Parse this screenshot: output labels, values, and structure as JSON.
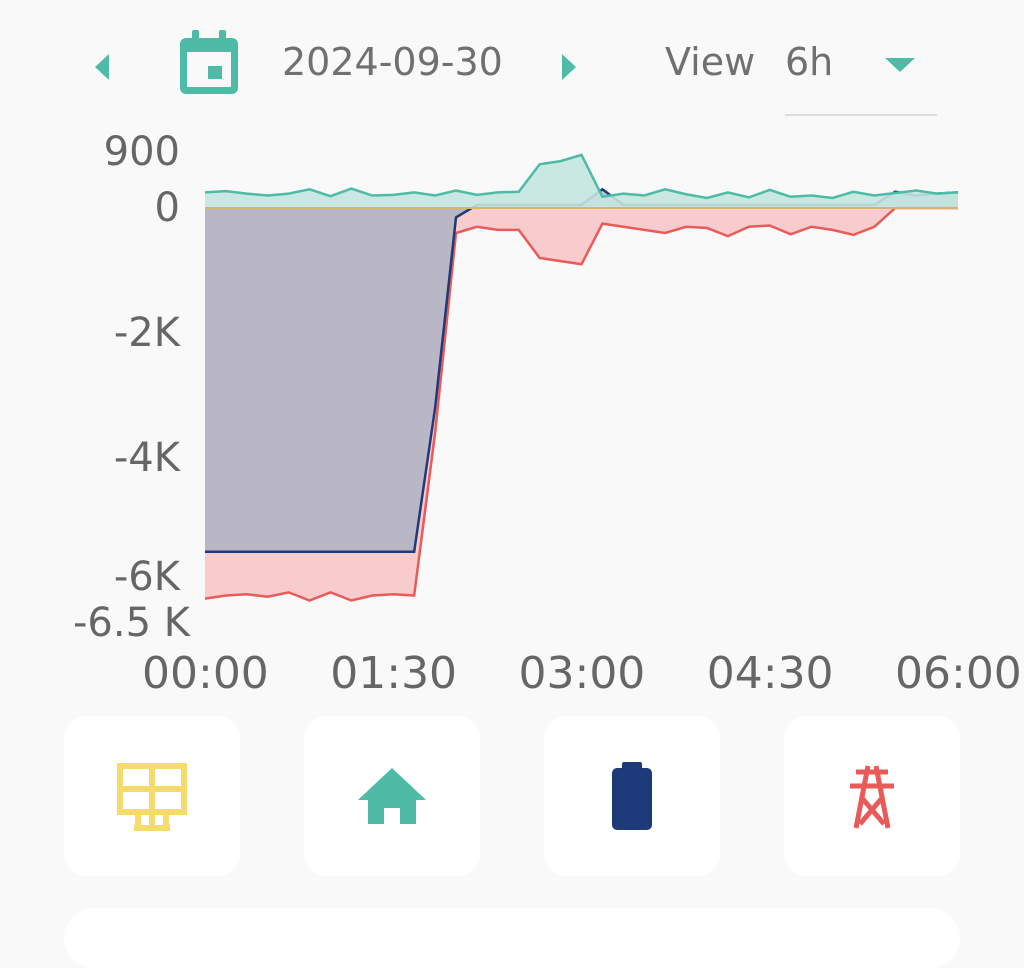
{
  "header": {
    "date": "2024-09-30",
    "view_label": "View",
    "view_value": "6h"
  },
  "icons": {
    "prev": "chevron-left-icon",
    "calendar": "calendar-icon",
    "next": "chevron-right-icon",
    "dropdown": "caret-down-icon"
  },
  "cards": [
    {
      "name": "solar",
      "icon": "solar-panel-icon",
      "color": "#f5dc6a"
    },
    {
      "name": "home",
      "icon": "home-icon",
      "color": "#4dbba5"
    },
    {
      "name": "battery",
      "icon": "battery-icon",
      "color": "#1f3a7a"
    },
    {
      "name": "grid",
      "icon": "power-tower-icon",
      "color": "#e85b58"
    }
  ],
  "chart_data": {
    "type": "area",
    "x_ticks": [
      "00:00",
      "01:30",
      "03:00",
      "04:30",
      "06:00"
    ],
    "x_range_minutes": [
      0,
      360
    ],
    "x_step_minutes": 10,
    "y_ticks": [
      "900",
      "0",
      "-2K",
      "-4K",
      "-6K",
      "-6.5 K"
    ],
    "y_tick_values": [
      900,
      0,
      -2000,
      -4000,
      -6000,
      -6500
    ],
    "ylim": [
      -6500,
      900
    ],
    "series": [
      {
        "key": "solar",
        "color": "#4dbba5",
        "fill": "#c3e6df",
        "values": [
          250,
          270,
          230,
          200,
          230,
          300,
          190,
          310,
          200,
          210,
          250,
          200,
          280,
          210,
          250,
          260,
          700,
          750,
          850,
          180,
          230,
          200,
          300,
          220,
          160,
          250,
          170,
          290,
          180,
          200,
          160,
          260,
          200,
          240,
          280,
          230,
          250
        ]
      },
      {
        "key": "grid",
        "color": "#e85b58",
        "fill": "#f7c6c6",
        "values": [
          -6250,
          -6200,
          -6180,
          -6220,
          -6150,
          -6280,
          -6150,
          -6280,
          -6200,
          -6180,
          -6200,
          -3600,
          -400,
          -300,
          -350,
          -350,
          -800,
          -850,
          -900,
          -250,
          -300,
          -350,
          -400,
          -300,
          -320,
          -450,
          -300,
          -280,
          -420,
          -300,
          -350,
          -430,
          -300,
          0,
          0,
          0,
          0
        ]
      },
      {
        "key": "battery",
        "color": "#1f3a7a",
        "fill": "#8fa6bf",
        "values": [
          -5500,
          -5500,
          -5500,
          -5500,
          -5500,
          -5500,
          -5500,
          -5500,
          -5500,
          -5500,
          -5500,
          -3200,
          -150,
          50,
          50,
          50,
          50,
          50,
          50,
          300,
          50,
          50,
          50,
          50,
          50,
          50,
          50,
          50,
          50,
          50,
          50,
          50,
          50,
          260,
          200,
          230,
          250
        ]
      }
    ]
  }
}
